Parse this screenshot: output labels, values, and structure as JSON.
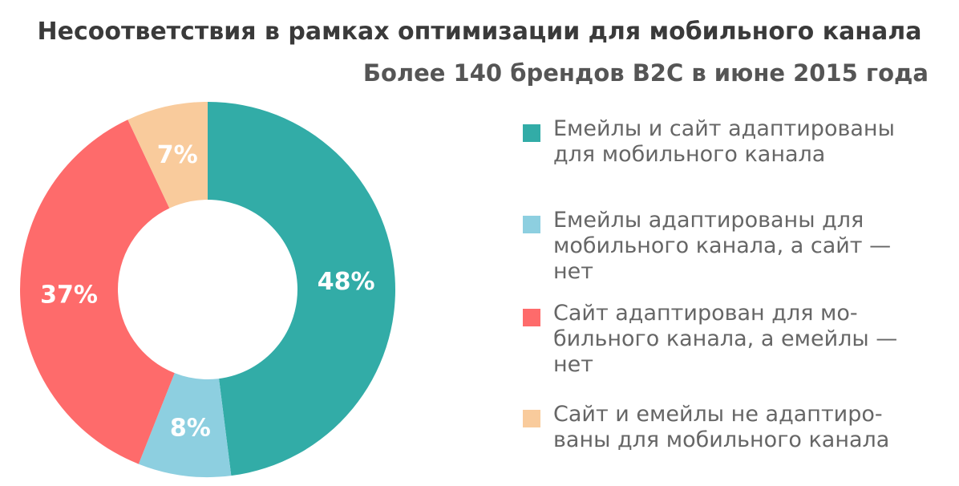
{
  "title": "Несоответствия в рамках оптимизации для мобильного канала",
  "subtitle": "Более 140 брендов B2C в июне 2015 года",
  "chart_data": {
    "type": "pie",
    "title": "Несоответствия в рамках оптимизации для мобильного канала",
    "subtitle": "Более 140 брендов B2C в июне 2015 года",
    "legend_position": "right",
    "slices": [
      {
        "label": "Емейлы и сайт адаптированы\nдля мобильного канала",
        "value": 48,
        "display": "48%",
        "color": "#32aca7"
      },
      {
        "label": "Емейлы адаптированы для\nмобильного канала, а сайт —\nнет",
        "value": 8,
        "display": "8%",
        "color": "#8dcfe0"
      },
      {
        "label": "Сайт адаптирован для мо-\nбильного канала, а емейлы —\nнет",
        "value": 37,
        "display": "37%",
        "color": "#fe6b6b"
      },
      {
        "label": "Сайт и емейлы не адаптиро-\nваны для мобильного канала",
        "value": 7,
        "display": "7%",
        "color": "#f9cb9c"
      }
    ]
  }
}
